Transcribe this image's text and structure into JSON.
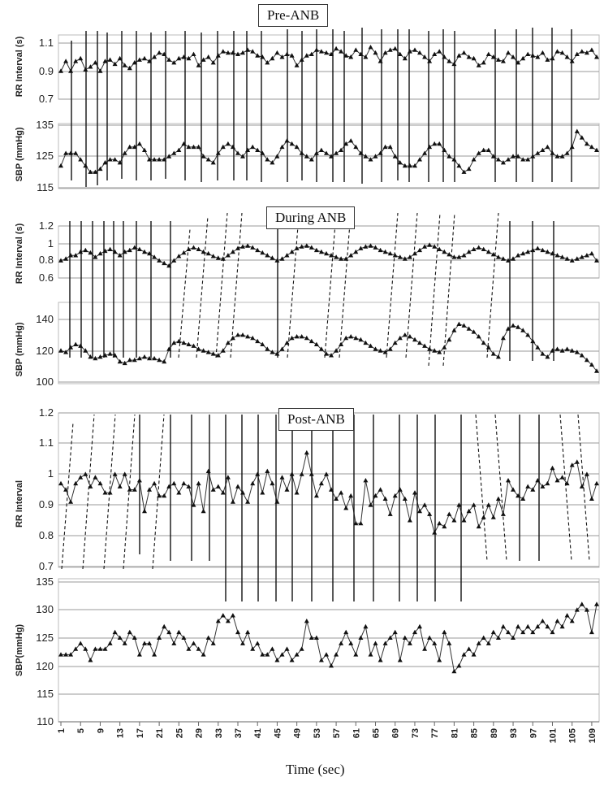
{
  "figure": {
    "x_axis_title": "Time (sec)",
    "x_ticks": [
      "1",
      "5",
      "9",
      "13",
      "17",
      "21",
      "25",
      "29",
      "33",
      "37",
      "41",
      "45",
      "49",
      "53",
      "57",
      "61",
      "65",
      "69",
      "73",
      "77",
      "81",
      "85",
      "89",
      "93",
      "97",
      "101",
      "105",
      "109"
    ]
  },
  "chart_data": [
    {
      "type": "line",
      "panel": "Pre-ANB",
      "title": "Pre-ANB",
      "subplots": [
        {
          "ylabel": "RR Interval (s)",
          "yticks": [
            "1.1",
            "0.9",
            "0.7"
          ],
          "ylim": [
            0.7,
            1.13
          ],
          "values": [
            0.9,
            0.97,
            0.9,
            0.97,
            0.99,
            0.91,
            0.93,
            0.96,
            0.9,
            0.97,
            0.98,
            0.95,
            0.99,
            0.94,
            0.92,
            0.96,
            0.98,
            0.99,
            0.97,
            1.0,
            1.03,
            1.02,
            0.98,
            0.96,
            0.99,
            1.0,
            0.99,
            1.02,
            0.94,
            0.98,
            1.0,
            0.96,
            1.01,
            1.04,
            1.03,
            1.03,
            1.02,
            1.03,
            1.05,
            1.04,
            1.01,
            1.0,
            0.96,
            0.99,
            1.03,
            1.0,
            1.02,
            1.01,
            0.94,
            0.98,
            1.01,
            1.02,
            1.05,
            1.04,
            1.03,
            1.02,
            1.06,
            1.04,
            1.01,
            1.0,
            1.05,
            1.02,
            1.0,
            1.07,
            1.03,
            0.97,
            1.03,
            1.05,
            1.06,
            1.02,
            0.99,
            1.04,
            1.05,
            1.03,
            1.0,
            0.97,
            1.02,
            1.04,
            1.0,
            0.97,
            0.95,
            1.01,
            1.03,
            1.0,
            0.99,
            0.94,
            0.96,
            1.02,
            1.0,
            0.98,
            0.97,
            1.03,
            1.0,
            0.96,
            0.99,
            1.02,
            1.01,
            1.0,
            1.03,
            0.98,
            0.99,
            1.04,
            1.03,
            1.0,
            0.97,
            1.02,
            1.04,
            1.03,
            1.05,
            1.0
          ]
        },
        {
          "ylabel": "SBP (mmHg)",
          "yticks": [
            "135",
            "125",
            "115"
          ],
          "ylim": [
            115,
            136
          ],
          "values": [
            122,
            126,
            126,
            126,
            124,
            122,
            120,
            120,
            121,
            123,
            124,
            124,
            123,
            126,
            128,
            128,
            129,
            127,
            124,
            124,
            124,
            124,
            125,
            126,
            127,
            129,
            128,
            128,
            128,
            125,
            124,
            123,
            126,
            128,
            129,
            128,
            126,
            125,
            127,
            128,
            127,
            126,
            124,
            123,
            125,
            128,
            130,
            129,
            128,
            126,
            125,
            124,
            126,
            127,
            126,
            125,
            126,
            127,
            129,
            130,
            128,
            126,
            125,
            124,
            125,
            126,
            128,
            128,
            125,
            123,
            122,
            122,
            122,
            124,
            126,
            128,
            129,
            129,
            127,
            125,
            124,
            122,
            120,
            121,
            124,
            126,
            127,
            127,
            125,
            124,
            123,
            124,
            125,
            125,
            124,
            124,
            125,
            126,
            127,
            128,
            126,
            125,
            125,
            126,
            128,
            133,
            131,
            129,
            128,
            127
          ]
        }
      ]
    },
    {
      "type": "line",
      "panel": "During ANB",
      "title": "During ANB",
      "subplots": [
        {
          "ylabel": "RR Interval (s)",
          "yticks": [
            "1.2",
            "1",
            "0.8",
            "0.6"
          ],
          "ylim": [
            0.6,
            1.2
          ],
          "values": [
            0.8,
            0.82,
            0.86,
            0.86,
            0.9,
            0.92,
            0.89,
            0.84,
            0.88,
            0.91,
            0.93,
            0.9,
            0.86,
            0.9,
            0.92,
            0.95,
            0.93,
            0.9,
            0.88,
            0.84,
            0.8,
            0.77,
            0.74,
            0.8,
            0.85,
            0.89,
            0.93,
            0.95,
            0.93,
            0.9,
            0.88,
            0.85,
            0.83,
            0.82,
            0.86,
            0.9,
            0.94,
            0.96,
            0.97,
            0.95,
            0.92,
            0.89,
            0.86,
            0.83,
            0.8,
            0.82,
            0.86,
            0.9,
            0.94,
            0.96,
            0.97,
            0.95,
            0.92,
            0.9,
            0.88,
            0.86,
            0.84,
            0.82,
            0.82,
            0.86,
            0.9,
            0.94,
            0.96,
            0.97,
            0.95,
            0.92,
            0.9,
            0.88,
            0.86,
            0.84,
            0.82,
            0.84,
            0.88,
            0.92,
            0.96,
            0.98,
            0.96,
            0.93,
            0.9,
            0.87,
            0.84,
            0.84,
            0.86,
            0.9,
            0.93,
            0.95,
            0.93,
            0.9,
            0.87,
            0.84,
            0.82,
            0.8,
            0.82,
            0.86,
            0.88,
            0.9,
            0.92,
            0.94,
            0.92,
            0.9,
            0.88,
            0.86,
            0.84,
            0.82,
            0.8,
            0.82,
            0.84,
            0.86,
            0.88,
            0.8
          ]
        },
        {
          "ylabel": "SBP (mmHg)",
          "yticks": [
            "140",
            "120",
            "100"
          ],
          "ylim": [
            100,
            145
          ],
          "values": [
            120,
            119,
            122,
            124,
            123,
            120,
            116,
            115,
            116,
            117,
            118,
            117,
            113,
            112,
            114,
            114,
            115,
            116,
            115,
            115,
            114,
            113,
            121,
            125,
            126,
            125,
            124,
            123,
            121,
            120,
            119,
            118,
            117,
            120,
            125,
            128,
            130,
            130,
            129,
            128,
            126,
            124,
            121,
            119,
            118,
            121,
            125,
            128,
            129,
            129,
            128,
            126,
            124,
            121,
            118,
            117,
            120,
            124,
            128,
            129,
            128,
            127,
            125,
            123,
            121,
            120,
            119,
            121,
            125,
            128,
            130,
            129,
            127,
            125,
            123,
            121,
            120,
            119,
            122,
            127,
            133,
            137,
            136,
            134,
            132,
            129,
            125,
            122,
            118,
            116,
            128,
            134,
            136,
            135,
            133,
            130,
            126,
            122,
            118,
            116,
            120,
            121,
            120,
            121,
            120,
            119,
            117,
            114,
            111,
            107
          ]
        }
      ]
    },
    {
      "type": "line",
      "panel": "Post-ANB",
      "title": "Post-ANB",
      "subplots": [
        {
          "ylabel": "RR Interval",
          "yticks": [
            "1.2",
            "1.1",
            "1",
            "0.9",
            "0.8",
            "0.7"
          ],
          "ylim": [
            0.7,
            1.2
          ],
          "values": [
            0.97,
            0.95,
            0.91,
            0.97,
            0.99,
            1.0,
            0.96,
            0.99,
            0.97,
            0.94,
            0.94,
            1.0,
            0.96,
            1.0,
            0.95,
            0.95,
            0.98,
            0.88,
            0.95,
            0.97,
            0.93,
            0.93,
            0.96,
            0.97,
            0.94,
            0.97,
            0.96,
            0.9,
            0.97,
            0.88,
            1.01,
            0.95,
            0.96,
            0.94,
            0.99,
            0.91,
            0.96,
            0.94,
            0.91,
            0.97,
            1.0,
            0.94,
            1.01,
            0.97,
            0.91,
            0.99,
            0.95,
            1.0,
            0.94,
            1.0,
            1.07,
            1.0,
            0.93,
            0.97,
            1.0,
            0.95,
            0.92,
            0.94,
            0.89,
            0.93,
            0.84,
            0.84,
            0.98,
            0.9,
            0.93,
            0.95,
            0.92,
            0.87,
            0.93,
            0.95,
            0.92,
            0.85,
            0.94,
            0.88,
            0.9,
            0.87,
            0.81,
            0.84,
            0.83,
            0.87,
            0.85,
            0.9,
            0.85,
            0.88,
            0.9,
            0.83,
            0.86,
            0.9,
            0.86,
            0.92,
            0.87,
            0.98,
            0.95,
            0.93,
            0.92,
            0.96,
            0.95,
            0.98,
            0.96,
            0.97,
            1.02,
            0.98,
            0.99,
            0.97,
            1.03,
            1.04,
            0.96,
            1.0,
            0.92,
            0.97
          ]
        },
        {
          "ylabel": "SBP(mmHg)",
          "yticks": [
            "135",
            "130",
            "125",
            "120",
            "115",
            "110"
          ],
          "ylim": [
            110,
            135
          ],
          "values": [
            122,
            122,
            122,
            123,
            124,
            123,
            121,
            123,
            123,
            123,
            124,
            126,
            125,
            124,
            126,
            125,
            122,
            124,
            124,
            122,
            125,
            127,
            126,
            124,
            126,
            125,
            123,
            124,
            123,
            122,
            125,
            124,
            128,
            129,
            128,
            129,
            126,
            124,
            126,
            123,
            124,
            122,
            122,
            123,
            121,
            122,
            123,
            121,
            122,
            123,
            128,
            125,
            125,
            121,
            122,
            120,
            122,
            124,
            126,
            124,
            122,
            125,
            127,
            122,
            124,
            121,
            124,
            125,
            126,
            121,
            125,
            124,
            126,
            127,
            123,
            125,
            124,
            121,
            126,
            124,
            119,
            120,
            122,
            123,
            122,
            124,
            125,
            124,
            126,
            125,
            127,
            126,
            125,
            127,
            126,
            127,
            126,
            127,
            128,
            127,
            126,
            128,
            127,
            129,
            128,
            130,
            131,
            130,
            126,
            131
          ]
        }
      ]
    }
  ]
}
